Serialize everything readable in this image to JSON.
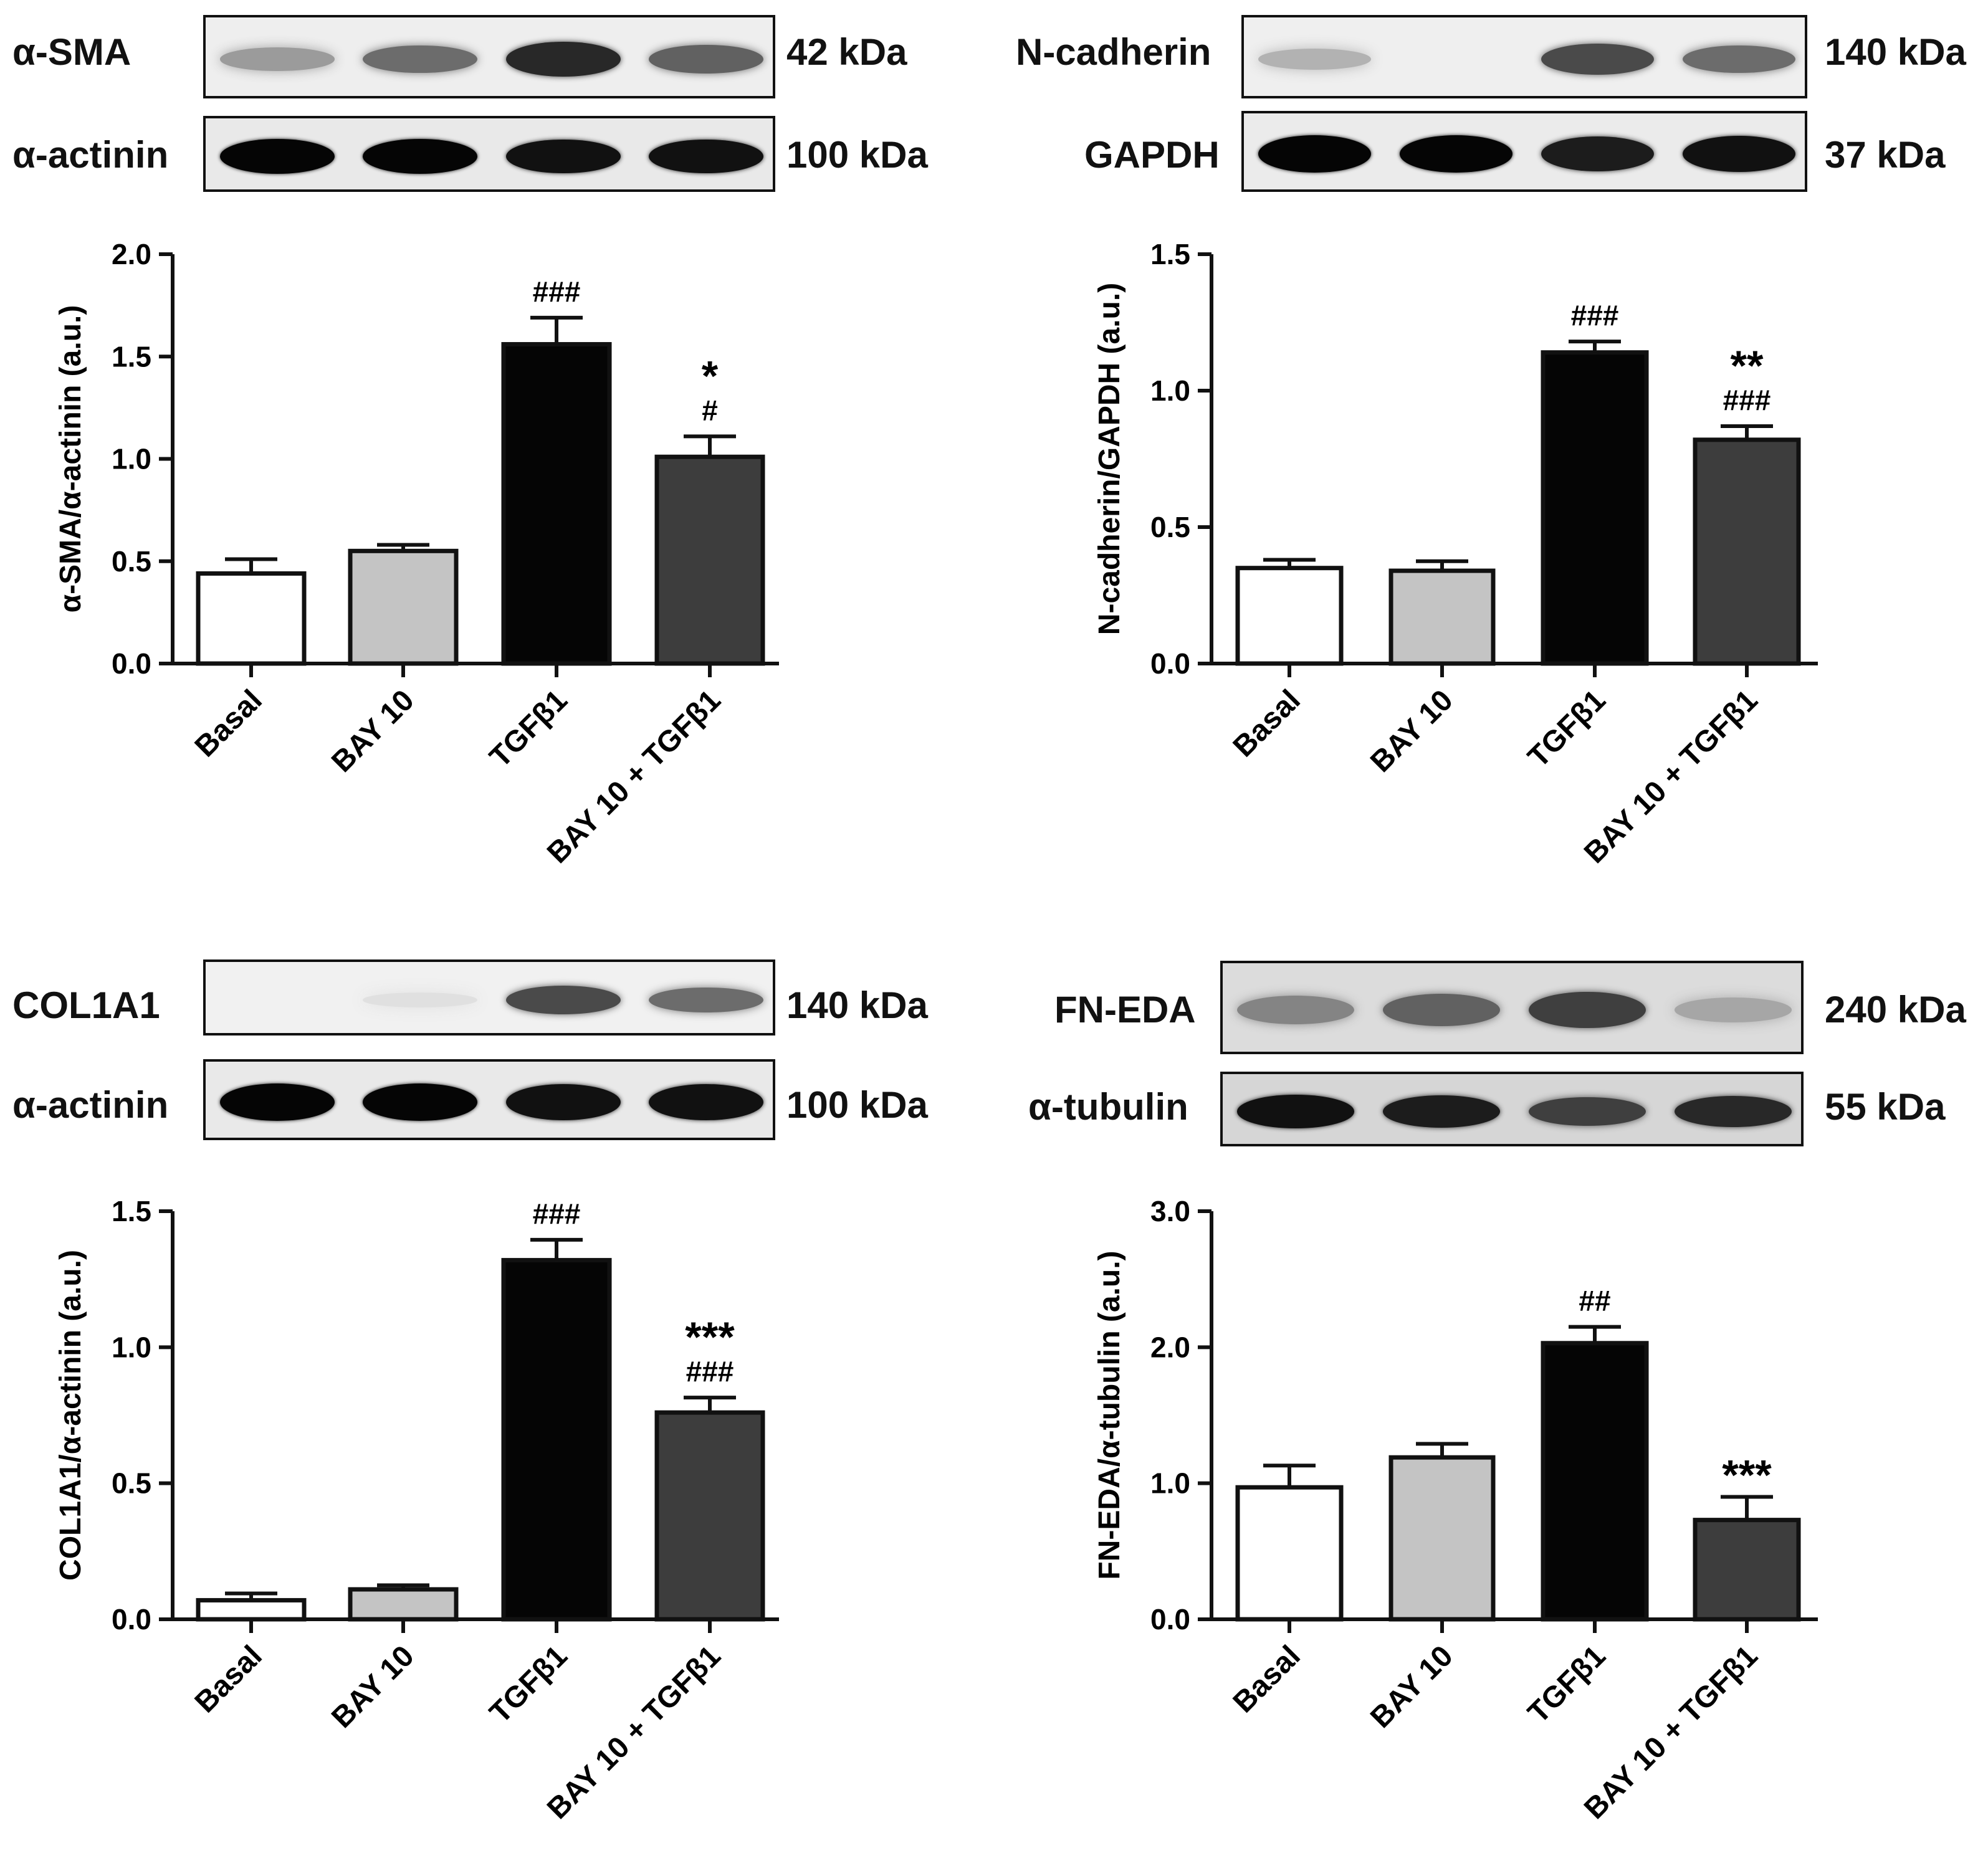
{
  "categories": [
    "Basal",
    "BAY 10",
    "TGFβ1",
    "BAY 10 + TGFβ1"
  ],
  "bar_colors": [
    "#ffffff",
    "#c4c4c4",
    "#050505",
    "#3d3d3d"
  ],
  "panels": [
    {
      "blots": [
        {
          "label": "α-SMA",
          "size": "42 kDa",
          "band_intensity": [
            0.35,
            0.55,
            0.85,
            0.6
          ],
          "bg": "#eeeeee"
        },
        {
          "label": "α-actinin",
          "size": "100 kDa",
          "band_intensity": [
            1.0,
            1.0,
            0.95,
            0.95
          ],
          "bg": "#e9e9e9"
        }
      ],
      "chart": {
        "ylabel": "α-SMA/α-actinin (a.u.)",
        "ylim": [
          0,
          2.0
        ],
        "yticks": [
          "0.0",
          "0.5",
          "1.0",
          "1.5",
          "2.0"
        ],
        "ytick_values": [
          0,
          0.5,
          1.0,
          1.5,
          2.0
        ],
        "values": [
          0.44,
          0.55,
          1.56,
          1.01
        ],
        "errors": [
          0.07,
          0.03,
          0.13,
          0.1
        ],
        "annotations": [
          [],
          [],
          [
            "###"
          ],
          [
            "*",
            "#"
          ]
        ]
      }
    },
    {
      "blots": [
        {
          "label": "N-cadherin",
          "size": "140 kDa",
          "band_intensity": [
            0.25,
            0.0,
            0.7,
            0.55
          ],
          "bg": "#efefef"
        },
        {
          "label": "GAPDH",
          "size": "37 kDa",
          "band_intensity": [
            1.0,
            1.0,
            0.9,
            0.95
          ],
          "bg": "#ebebeb"
        }
      ],
      "chart": {
        "ylabel": "N-cadherin/GAPDH (a.u.)",
        "ylim": [
          0,
          1.5
        ],
        "yticks": [
          "0.0",
          "0.5",
          "1.0",
          "1.5"
        ],
        "ytick_values": [
          0,
          0.5,
          1.0,
          1.5
        ],
        "values": [
          0.35,
          0.34,
          1.14,
          0.82
        ],
        "errors": [
          0.03,
          0.035,
          0.04,
          0.05
        ],
        "annotations": [
          [],
          [],
          [
            "###"
          ],
          [
            "**",
            "###"
          ]
        ]
      }
    },
    {
      "blots": [
        {
          "label": "COL1A1",
          "size": "140 kDa",
          "band_intensity": [
            0.0,
            0.05,
            0.7,
            0.55
          ],
          "bg": "#f1f1f1"
        },
        {
          "label": "α-actinin",
          "size": "100 kDa",
          "band_intensity": [
            1.0,
            1.0,
            0.95,
            0.95
          ],
          "bg": "#e9e9e9"
        }
      ],
      "chart": {
        "ylabel": "COL1A1/α-actinin (a.u.)",
        "ylim": [
          0,
          1.5
        ],
        "yticks": [
          "0.0",
          "0.5",
          "1.0",
          "1.5"
        ],
        "ytick_values": [
          0,
          0.5,
          1.0,
          1.5
        ],
        "values": [
          0.07,
          0.11,
          1.32,
          0.76
        ],
        "errors": [
          0.025,
          0.015,
          0.075,
          0.055
        ],
        "annotations": [
          [],
          [],
          [
            "###"
          ],
          [
            "***",
            "###"
          ]
        ]
      }
    },
    {
      "blots": [
        {
          "label": "FN-EDA",
          "size": "240 kDa",
          "band_intensity": [
            0.45,
            0.6,
            0.75,
            0.3
          ],
          "bg": "#dcdcdc"
        },
        {
          "label": "α-tubulin",
          "size": "55 kDa",
          "band_intensity": [
            0.95,
            0.9,
            0.75,
            0.85
          ],
          "bg": "#d6d6d6"
        }
      ],
      "chart": {
        "ylabel": "FN-EDA/α-tubulin (a.u.)",
        "ylim": [
          0,
          3.0
        ],
        "yticks": [
          "0.0",
          "1.0",
          "2.0",
          "3.0"
        ],
        "ytick_values": [
          0,
          1.0,
          2.0,
          3.0
        ],
        "values": [
          0.97,
          1.19,
          2.03,
          0.73
        ],
        "errors": [
          0.16,
          0.1,
          0.12,
          0.17
        ],
        "annotations": [
          [],
          [],
          [
            "##"
          ],
          [
            "***"
          ]
        ]
      }
    }
  ],
  "chart_data": [
    {
      "type": "bar",
      "categories": [
        "Basal",
        "BAY 10",
        "TGFβ1",
        "BAY 10 + TGFβ1"
      ],
      "values": [
        0.44,
        0.55,
        1.56,
        1.01
      ],
      "errors": [
        0.07,
        0.03,
        0.13,
        0.1
      ],
      "xlabel": "",
      "ylabel": "α-SMA/α-actinin (a.u.)",
      "ylim": [
        0,
        2.0
      ],
      "annotations": [
        "",
        "",
        "###",
        "* #"
      ]
    },
    {
      "type": "bar",
      "categories": [
        "Basal",
        "BAY 10",
        "TGFβ1",
        "BAY 10 + TGFβ1"
      ],
      "values": [
        0.35,
        0.34,
        1.14,
        0.82
      ],
      "errors": [
        0.03,
        0.035,
        0.04,
        0.05
      ],
      "xlabel": "",
      "ylabel": "N-cadherin/GAPDH (a.u.)",
      "ylim": [
        0,
        1.5
      ],
      "annotations": [
        "",
        "",
        "###",
        "** ###"
      ]
    },
    {
      "type": "bar",
      "categories": [
        "Basal",
        "BAY 10",
        "TGFβ1",
        "BAY 10 + TGFβ1"
      ],
      "values": [
        0.07,
        0.11,
        1.32,
        0.76
      ],
      "errors": [
        0.025,
        0.015,
        0.075,
        0.055
      ],
      "xlabel": "",
      "ylabel": "COL1A1/α-actinin (a.u.)",
      "ylim": [
        0,
        1.5
      ],
      "annotations": [
        "",
        "",
        "###",
        "*** ###"
      ]
    },
    {
      "type": "bar",
      "categories": [
        "Basal",
        "BAY 10",
        "TGFβ1",
        "BAY 10 + TGFβ1"
      ],
      "values": [
        0.97,
        1.19,
        2.03,
        0.73
      ],
      "errors": [
        0.16,
        0.1,
        0.12,
        0.17
      ],
      "xlabel": "",
      "ylabel": "FN-EDA/α-tubulin (a.u.)",
      "ylim": [
        0,
        3.0
      ],
      "annotations": [
        "",
        "",
        "##",
        "***"
      ]
    }
  ]
}
